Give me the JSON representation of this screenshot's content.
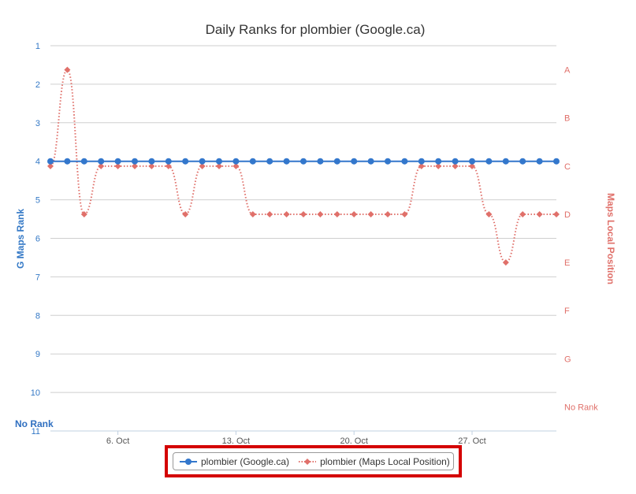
{
  "chart_data": {
    "type": "line",
    "title": "Daily Ranks for plombier (Google.ca)",
    "y_left": {
      "label": "G Maps Rank",
      "ticks": [
        "1",
        "2",
        "3",
        "4",
        "5",
        "6",
        "7",
        "8",
        "9",
        "10",
        "11"
      ],
      "range": [
        1,
        11
      ],
      "reversed": true,
      "no_rank_label": "No Rank"
    },
    "y_right": {
      "label": "Maps Local Position",
      "ticks": [
        "A",
        "B",
        "C",
        "D",
        "E",
        "F",
        "G",
        "No Rank"
      ],
      "range": [
        0.5,
        8.5
      ],
      "reversed": true
    },
    "x": {
      "tick_labels": [
        "6. Oct",
        "13. Oct",
        "20. Oct",
        "27. Oct"
      ],
      "tick_days": [
        6,
        13,
        20,
        27
      ],
      "start_day": 2,
      "end_day": 32
    },
    "series": [
      {
        "name": "plombier (Google.ca)",
        "axis": "left",
        "color": "#3377cc",
        "style": "solid",
        "marker": "circle",
        "days": [
          2,
          3,
          4,
          5,
          6,
          7,
          8,
          9,
          10,
          11,
          12,
          13,
          14,
          15,
          16,
          17,
          18,
          19,
          20,
          21,
          22,
          23,
          24,
          25,
          26,
          27,
          28,
          29,
          30,
          31,
          32
        ],
        "values": [
          4,
          4,
          4,
          4,
          4,
          4,
          4,
          4,
          4,
          4,
          4,
          4,
          4,
          4,
          4,
          4,
          4,
          4,
          4,
          4,
          4,
          4,
          4,
          4,
          4,
          4,
          4,
          4,
          4,
          4,
          4
        ]
      },
      {
        "name": "plombier (Maps Local Position)",
        "axis": "right",
        "color": "#e0706a",
        "style": "dotted",
        "marker": "diamond",
        "days": [
          2,
          3,
          4,
          5,
          6,
          7,
          8,
          9,
          10,
          11,
          12,
          13,
          14,
          15,
          16,
          17,
          18,
          19,
          20,
          21,
          22,
          23,
          24,
          25,
          26,
          27,
          28,
          29,
          30,
          31,
          32
        ],
        "values": [
          3,
          1,
          4,
          3,
          3,
          3,
          3,
          3,
          4,
          3,
          3,
          3,
          4,
          4,
          4,
          4,
          4,
          4,
          4,
          4,
          4,
          4,
          3,
          3,
          3,
          3,
          4,
          5,
          4,
          4,
          4
        ]
      }
    ],
    "grid": true,
    "legend_position": "bottom-center"
  }
}
